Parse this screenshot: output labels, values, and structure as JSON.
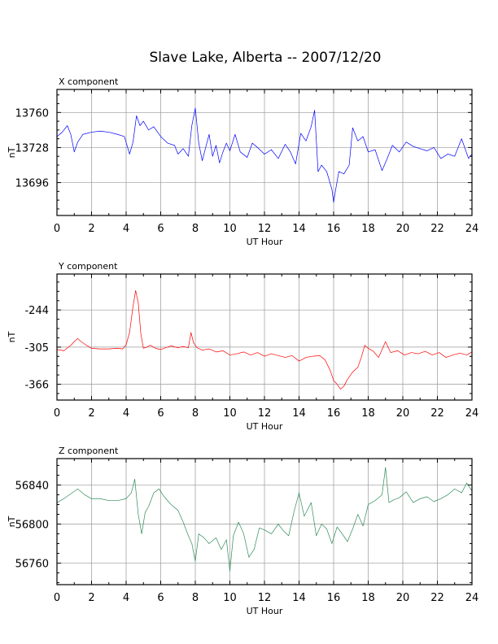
{
  "chart_data": {
    "title": "Slave Lake, Alberta -- 2007/12/20",
    "panels": [
      {
        "type": "line",
        "panel_label": "X component",
        "xlabel": "UT Hour",
        "ylabel": "nT",
        "xlim": [
          0,
          24
        ],
        "ylim": [
          13666,
          13781
        ],
        "x_ticks": [
          0,
          2,
          4,
          6,
          8,
          10,
          12,
          14,
          16,
          18,
          20,
          22,
          24
        ],
        "x_tick_labels": [
          "0",
          "2",
          "4",
          "6",
          "8",
          "10",
          "12",
          "14",
          "16",
          "18",
          "20",
          "22",
          "24"
        ],
        "y_ticks": [
          13696,
          13728,
          13760
        ],
        "y_tick_labels": [
          "13696",
          "13728",
          "13760"
        ],
        "grid": true,
        "color": "#0000ff",
        "x": [
          0,
          0.3,
          0.6,
          0.8,
          1.0,
          1.2,
          1.5,
          2,
          2.5,
          3,
          3.5,
          3.9,
          4.2,
          4.4,
          4.6,
          4.8,
          5.0,
          5.3,
          5.6,
          6.0,
          6.4,
          6.8,
          7.0,
          7.3,
          7.6,
          7.8,
          8.0,
          8.2,
          8.4,
          8.6,
          8.8,
          9.0,
          9.2,
          9.4,
          9.6,
          9.8,
          10.0,
          10.3,
          10.6,
          11.0,
          11.3,
          11.6,
          12.0,
          12.4,
          12.8,
          13.2,
          13.5,
          13.8,
          14.1,
          14.4,
          14.7,
          14.9,
          15.1,
          15.3,
          15.6,
          15.9,
          16.0,
          16.1,
          16.3,
          16.6,
          16.9,
          17.1,
          17.4,
          17.7,
          18.0,
          18.4,
          18.8,
          19.1,
          19.4,
          19.8,
          20.2,
          20.6,
          21.0,
          21.4,
          21.8,
          22.2,
          22.6,
          23.0,
          23.4,
          23.8,
          24
        ],
        "y": [
          13738,
          13742,
          13748,
          13740,
          13724,
          13733,
          13740,
          13742,
          13743,
          13742,
          13740,
          13738,
          13722,
          13733,
          13757,
          13748,
          13752,
          13744,
          13747,
          13738,
          13732,
          13730,
          13722,
          13727,
          13720,
          13748,
          13764,
          13732,
          13716,
          13728,
          13740,
          13720,
          13730,
          13714,
          13724,
          13732,
          13725,
          13740,
          13724,
          13719,
          13732,
          13728,
          13722,
          13726,
          13718,
          13731,
          13724,
          13713,
          13741,
          13734,
          13747,
          13762,
          13706,
          13712,
          13706,
          13690,
          13678,
          13688,
          13706,
          13704,
          13712,
          13746,
          13734,
          13738,
          13724,
          13726,
          13707,
          13718,
          13730,
          13724,
          13733,
          13729,
          13727,
          13725,
          13728,
          13718,
          13722,
          13720,
          13736,
          13718,
          13722
        ]
      },
      {
        "type": "line",
        "panel_label": "Y component",
        "xlabel": "UT Hour",
        "ylabel": "nT",
        "xlim": [
          0,
          24
        ],
        "ylim": [
          -392,
          -185
        ],
        "x_ticks": [
          0,
          2,
          4,
          6,
          8,
          10,
          12,
          14,
          16,
          18,
          20,
          22,
          24
        ],
        "x_tick_labels": [
          "0",
          "2",
          "4",
          "6",
          "8",
          "10",
          "12",
          "14",
          "16",
          "18",
          "20",
          "22",
          "24"
        ],
        "y_ticks": [
          -366,
          -305,
          -244
        ],
        "y_tick_labels": [
          "-366",
          "-305",
          "-244"
        ],
        "grid": true,
        "color": "#ff0000",
        "x": [
          0,
          0.4,
          0.8,
          1.0,
          1.2,
          1.4,
          1.7,
          2.0,
          2.5,
          3.0,
          3.5,
          3.8,
          4.0,
          4.2,
          4.4,
          4.55,
          4.7,
          4.85,
          5.0,
          5.2,
          5.4,
          5.7,
          6.0,
          6.3,
          6.6,
          7.0,
          7.3,
          7.6,
          7.75,
          7.9,
          8.1,
          8.4,
          8.8,
          9.2,
          9.6,
          10.0,
          10.4,
          10.8,
          11.2,
          11.6,
          12.0,
          12.4,
          12.8,
          13.2,
          13.6,
          14.0,
          14.4,
          14.8,
          15.2,
          15.5,
          15.8,
          16.0,
          16.2,
          16.4,
          16.6,
          16.8,
          17.1,
          17.4,
          17.6,
          17.8,
          18.0,
          18.3,
          18.6,
          19.0,
          19.3,
          19.7,
          20.1,
          20.5,
          20.9,
          21.3,
          21.7,
          22.1,
          22.5,
          22.9,
          23.3,
          23.7,
          24
        ],
        "y": [
          -309,
          -311,
          -302,
          -296,
          -291,
          -296,
          -302,
          -307,
          -308,
          -308,
          -307,
          -308,
          -301,
          -281,
          -238,
          -212,
          -232,
          -283,
          -307,
          -305,
          -302,
          -307,
          -309,
          -306,
          -303,
          -306,
          -304,
          -306,
          -281,
          -298,
          -306,
          -310,
          -308,
          -313,
          -311,
          -318,
          -316,
          -313,
          -318,
          -314,
          -320,
          -316,
          -319,
          -322,
          -319,
          -328,
          -322,
          -320,
          -319,
          -326,
          -343,
          -360,
          -366,
          -374,
          -369,
          -358,
          -346,
          -338,
          -322,
          -302,
          -307,
          -312,
          -322,
          -296,
          -314,
          -311,
          -318,
          -314,
          -316,
          -312,
          -318,
          -314,
          -322,
          -318,
          -315,
          -318,
          -313
        ]
      },
      {
        "type": "line",
        "panel_label": "Z component",
        "xlabel": "UT Hour",
        "ylabel": "nT",
        "xlim": [
          0,
          24
        ],
        "ylim": [
          56738,
          56867
        ],
        "x_ticks": [
          0,
          2,
          4,
          6,
          8,
          10,
          12,
          14,
          16,
          18,
          20,
          22,
          24
        ],
        "x_tick_labels": [
          "0",
          "2",
          "4",
          "6",
          "8",
          "10",
          "12",
          "14",
          "16",
          "18",
          "20",
          "22",
          "24"
        ],
        "y_ticks": [
          56760,
          56800,
          56840
        ],
        "y_tick_labels": [
          "56760",
          "56800",
          "56840"
        ],
        "grid": true,
        "color": "#2e8b57",
        "x": [
          0,
          0.4,
          0.8,
          1.2,
          1.6,
          2.0,
          2.5,
          3.0,
          3.5,
          4.0,
          4.3,
          4.5,
          4.7,
          4.9,
          5.1,
          5.3,
          5.6,
          5.9,
          6.2,
          6.6,
          7.0,
          7.3,
          7.6,
          7.8,
          8.0,
          8.2,
          8.5,
          8.8,
          9.2,
          9.5,
          9.8,
          10.0,
          10.2,
          10.5,
          10.8,
          11.1,
          11.4,
          11.7,
          12.0,
          12.4,
          12.8,
          13.1,
          13.4,
          13.7,
          14.0,
          14.3,
          14.7,
          15.0,
          15.3,
          15.6,
          15.9,
          16.2,
          16.5,
          16.8,
          17.1,
          17.4,
          17.7,
          18.0,
          18.4,
          18.8,
          19.0,
          19.2,
          19.5,
          19.8,
          20.2,
          20.6,
          21.0,
          21.4,
          21.8,
          22.2,
          22.6,
          23.0,
          23.4,
          23.7,
          24
        ],
        "y": [
          56822,
          56826,
          56831,
          56836,
          56830,
          56826,
          56826,
          56824,
          56824,
          56826,
          56832,
          56846,
          56810,
          56790,
          56812,
          56818,
          56832,
          56836,
          56828,
          56820,
          56814,
          56802,
          56788,
          56780,
          56762,
          56790,
          56786,
          56780,
          56786,
          56774,
          56784,
          56752,
          56788,
          56802,
          56790,
          56766,
          56774,
          56796,
          56794,
          56790,
          56800,
          56793,
          56788,
          56812,
          56832,
          56808,
          56822,
          56788,
          56800,
          56795,
          56780,
          56797,
          56790,
          56782,
          56795,
          56810,
          56798,
          56820,
          56824,
          56830,
          56858,
          56822,
          56825,
          56827,
          56833,
          56822,
          56826,
          56828,
          56823,
          56826,
          56830,
          56836,
          56832,
          56842,
          56834
        ]
      }
    ]
  }
}
